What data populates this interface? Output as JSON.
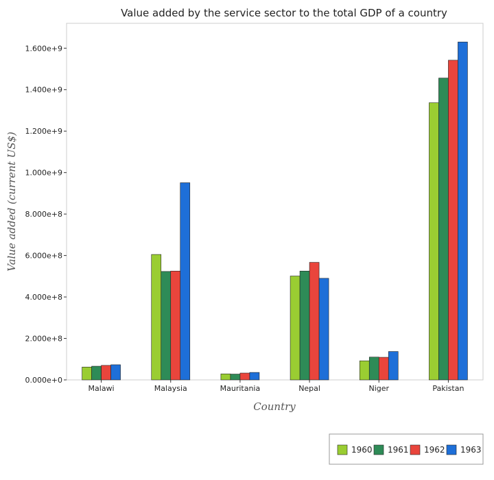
{
  "chart_data": {
    "type": "bar",
    "title": "Value added by the service sector to the total GDP of a country",
    "xlabel": "Country",
    "ylabel": "Value added (current US$)",
    "categories": [
      "Malawi",
      "Malaysia",
      "Mauritania",
      "Nepal",
      "Niger",
      "Pakistan"
    ],
    "series": [
      {
        "name": "1960",
        "color": "#9acd32",
        "values": [
          62000000,
          605000000,
          29000000,
          501000000,
          92000000,
          1337000000
        ]
      },
      {
        "name": "1961",
        "color": "#2e8b57",
        "values": [
          66000000,
          523000000,
          28000000,
          525000000,
          110000000,
          1456000000
        ]
      },
      {
        "name": "1962",
        "color": "#e9453c",
        "values": [
          70000000,
          525000000,
          33000000,
          567000000,
          109000000,
          1542000000
        ]
      },
      {
        "name": "1963",
        "color": "#1e6fd8",
        "values": [
          73000000,
          951000000,
          36000000,
          490000000,
          137000000,
          1630000000
        ]
      }
    ],
    "ylim": [
      0,
      1720000000
    ],
    "yticks": [
      0,
      200000000,
      400000000,
      600000000,
      800000000,
      1000000000,
      1200000000,
      1400000000,
      1600000000
    ],
    "ytick_labels": [
      "0.000e+0",
      "2.000e+8",
      "4.000e+8",
      "6.000e+8",
      "8.000e+8",
      "1.000e+9",
      "1.200e+9",
      "1.400e+9",
      "1.600e+9"
    ],
    "grid": false,
    "legend_position": "bottom-right"
  }
}
